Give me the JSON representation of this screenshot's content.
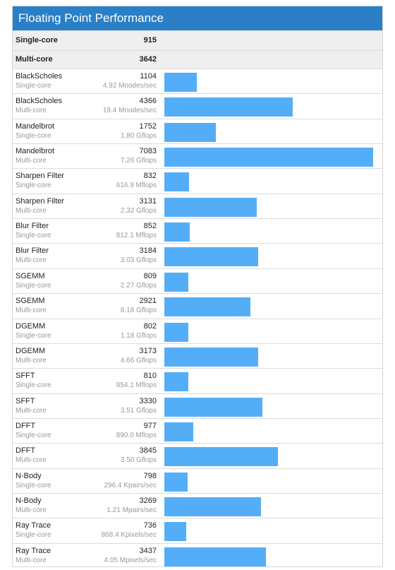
{
  "header": {
    "title": "Floating Point Performance"
  },
  "summary": [
    {
      "label": "Single-core",
      "score": 915
    },
    {
      "label": "Multi-core",
      "score": 3642
    }
  ],
  "benchmarks": [
    {
      "name": "BlackScholes",
      "mode": "Single-core",
      "score": 1104,
      "rate": "4.92 Mnodes/sec"
    },
    {
      "name": "BlackScholes",
      "mode": "Multi-core",
      "score": 4366,
      "rate": "19.4 Mnodes/sec"
    },
    {
      "name": "Mandelbrot",
      "mode": "Single-core",
      "score": 1752,
      "rate": "1.80 Gflops"
    },
    {
      "name": "Mandelbrot",
      "mode": "Multi-core",
      "score": 7083,
      "rate": "7.26 Gflops"
    },
    {
      "name": "Sharpen Filter",
      "mode": "Single-core",
      "score": 832,
      "rate": "616.9 Mflops"
    },
    {
      "name": "Sharpen Filter",
      "mode": "Multi-core",
      "score": 3131,
      "rate": "2.32 Gflops"
    },
    {
      "name": "Blur Filter",
      "mode": "Single-core",
      "score": 852,
      "rate": "812.1 Mflops"
    },
    {
      "name": "Blur Filter",
      "mode": "Multi-core",
      "score": 3184,
      "rate": "3.03 Gflops"
    },
    {
      "name": "SGEMM",
      "mode": "Single-core",
      "score": 809,
      "rate": "2.27 Gflops"
    },
    {
      "name": "SGEMM",
      "mode": "Multi-core",
      "score": 2921,
      "rate": "8.18 Gflops"
    },
    {
      "name": "DGEMM",
      "mode": "Single-core",
      "score": 802,
      "rate": "1.18 Gflops"
    },
    {
      "name": "DGEMM",
      "mode": "Multi-core",
      "score": 3173,
      "rate": "4.66 Gflops"
    },
    {
      "name": "SFFT",
      "mode": "Single-core",
      "score": 810,
      "rate": "854.1 Mflops"
    },
    {
      "name": "SFFT",
      "mode": "Multi-core",
      "score": 3330,
      "rate": "3.51 Gflops"
    },
    {
      "name": "DFFT",
      "mode": "Single-core",
      "score": 977,
      "rate": "890.0 Mflops"
    },
    {
      "name": "DFFT",
      "mode": "Multi-core",
      "score": 3845,
      "rate": "3.50 Gflops"
    },
    {
      "name": "N-Body",
      "mode": "Single-core",
      "score": 798,
      "rate": "296.4 Kpairs/sec"
    },
    {
      "name": "N-Body",
      "mode": "Multi-core",
      "score": 3269,
      "rate": "1.21 Mpairs/sec"
    },
    {
      "name": "Ray Trace",
      "mode": "Single-core",
      "score": 736,
      "rate": "868.4 Kpixels/sec"
    },
    {
      "name": "Ray Trace",
      "mode": "Multi-core",
      "score": 3437,
      "rate": "4.05 Mpixels/sec"
    }
  ]
}
